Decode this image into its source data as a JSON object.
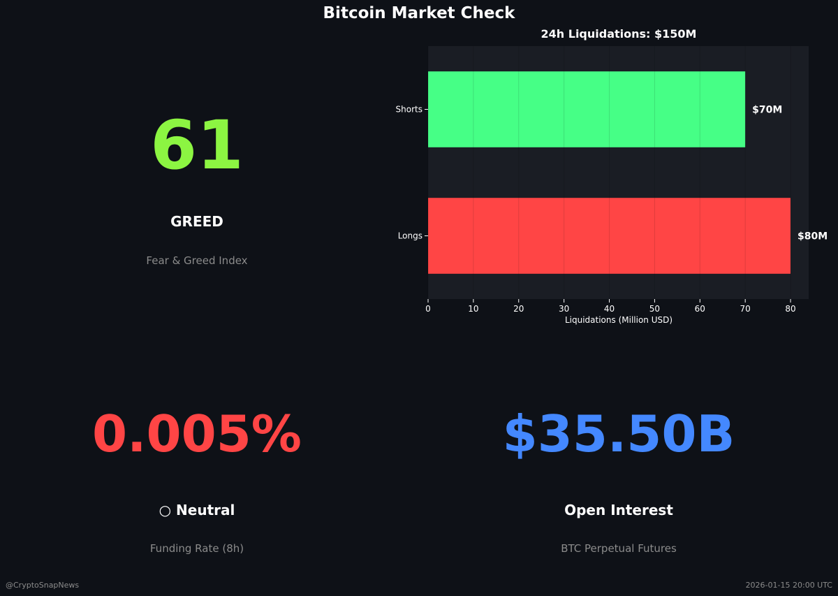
{
  "title": "Bitcoin Market Check",
  "fear_greed": {
    "value": "61",
    "label": "GREED",
    "caption": "Fear & Greed Index",
    "color": "#8cf542"
  },
  "funding": {
    "value": "0.005%",
    "label": "○ Neutral",
    "caption": "Funding Rate (8h)",
    "color": "#ff4545"
  },
  "open_interest": {
    "value": "$35.50B",
    "label": "Open Interest",
    "caption": "BTC Perpetual Futures",
    "color": "#4488ff"
  },
  "footer": {
    "handle": "@CryptoSnapNews",
    "timestamp": "2026-01-15 20:00 UTC"
  },
  "chart_data": {
    "type": "bar",
    "orientation": "horizontal",
    "title": "24h Liquidations: $150M",
    "xlabel": "Liquidations (Million USD)",
    "ylabel": "",
    "categories": [
      "Shorts",
      "Longs"
    ],
    "values": [
      70,
      80
    ],
    "data_labels": [
      "$70M",
      "$80M"
    ],
    "colors": [
      "#46ff86",
      "#ff4545"
    ],
    "xlim": [
      0,
      84
    ],
    "xticks": [
      0,
      10,
      20,
      30,
      40,
      50,
      60,
      70,
      80
    ],
    "grid": true
  }
}
